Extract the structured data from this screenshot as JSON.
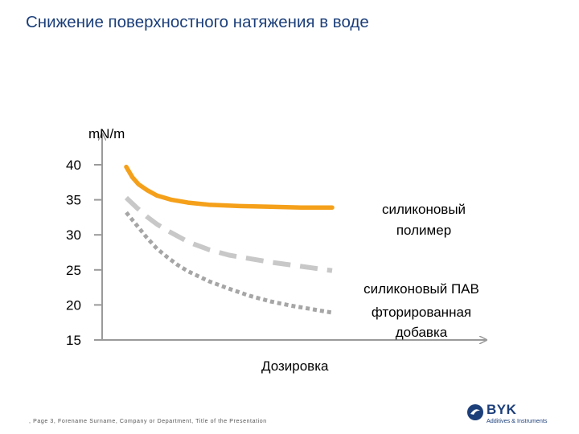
{
  "slide": {
    "title": "Снижение поверхностного натяжения в воде",
    "footer": ", Page 3, Forename Surname, Company or Department, Title of the Presentation"
  },
  "logo": {
    "name": "BYK",
    "subtitle": "Additives & Instruments",
    "color": "#1c3f7a"
  },
  "chart_data": {
    "type": "line",
    "ylabel": "mN/m",
    "xlabel": "Дозировка",
    "yticks": [
      40,
      35,
      30,
      25,
      20,
      15
    ],
    "ylim": [
      15,
      40
    ],
    "xlim": [
      0,
      1
    ],
    "grid": false,
    "series": [
      {
        "name": "силиконовый полимер",
        "color": "#f5a01a",
        "style": "solid",
        "x": [
          0,
          0.03,
          0.06,
          0.1,
          0.15,
          0.22,
          0.3,
          0.4,
          0.55,
          0.7,
          0.85,
          1.0
        ],
        "values": [
          39.7,
          38.2,
          37.2,
          36.4,
          35.6,
          35.0,
          34.6,
          34.3,
          34.1,
          34.0,
          33.9,
          33.9
        ]
      },
      {
        "name": "силиконовый ПАВ",
        "color": "#c8c8c8",
        "style": "dashed",
        "x": [
          0,
          0.05,
          0.1,
          0.15,
          0.2,
          0.25,
          0.3,
          0.4,
          0.5,
          0.6,
          0.7,
          0.8,
          0.9,
          1.0
        ],
        "values": [
          35.3,
          33.9,
          32.6,
          31.5,
          30.6,
          29.8,
          29.0,
          27.9,
          27.1,
          26.6,
          26.1,
          25.7,
          25.3,
          24.9
        ]
      },
      {
        "name": "фторированная добавка",
        "color": "#a6a6a6",
        "style": "dotted",
        "x": [
          0,
          0.05,
          0.1,
          0.15,
          0.2,
          0.25,
          0.3,
          0.4,
          0.5,
          0.6,
          0.7,
          0.8,
          0.9,
          1.0
        ],
        "values": [
          33.2,
          31.4,
          29.6,
          28.0,
          26.8,
          25.7,
          24.8,
          23.4,
          22.3,
          21.3,
          20.5,
          19.9,
          19.4,
          18.9
        ]
      }
    ]
  }
}
